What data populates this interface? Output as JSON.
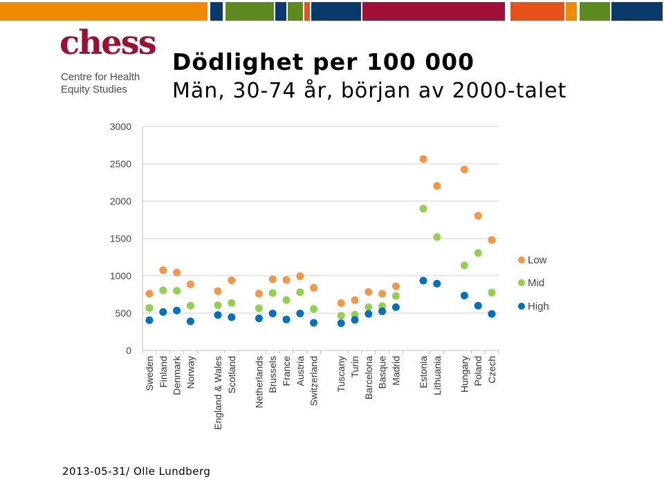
{
  "header": {
    "bar_colors": [
      "#f08a00",
      "#0a3a6b",
      "#5c8a1e",
      "#0a3a6b",
      "#5c8a1e",
      "#e8521a",
      "#0a3a6b",
      "#a0103a",
      "#e8521a",
      "#f08a00",
      "#5c8a1e",
      "#0a3a6b"
    ]
  },
  "logo": {
    "wordmark": "chess",
    "line1": "Centre for Health",
    "line2": "Equity Studies",
    "color": "#9b1033"
  },
  "slide": {
    "title": "Dödlighet per 100 000",
    "subtitle": "Män, 30-74 år, början av 2000-talet"
  },
  "footer": {
    "text": "2013-05-31/ Olle Lundberg"
  },
  "chart_data": {
    "type": "scatter",
    "ylim": [
      0,
      3000
    ],
    "yticks": [
      0,
      500,
      1000,
      1500,
      2000,
      2500,
      3000
    ],
    "grid": true,
    "legend_position": "right",
    "groups": [
      [
        "Sweden",
        "Finland",
        "Denmark",
        "Norway"
      ],
      [
        "England & Wales",
        "Scotland"
      ],
      [
        "Netherlands",
        "Brussels",
        "France",
        "Austria",
        "Switzerland"
      ],
      [
        "Tuscany",
        "Turin",
        "Barcelona",
        "Basque",
        "Madrid"
      ],
      [
        "Estonia",
        "Lithuania"
      ],
      [
        "Hungary",
        "Poland",
        "Czech"
      ]
    ],
    "categories": [
      "Sweden",
      "Finland",
      "Denmark",
      "Norway",
      "England & Wales",
      "Scotland",
      "Netherlands",
      "Brussels",
      "France",
      "Austria",
      "Switzerland",
      "Tuscany",
      "Turin",
      "Barcelona",
      "Basque",
      "Madrid",
      "Estonia",
      "Lithuania",
      "Hungary",
      "Poland",
      "Czech"
    ],
    "series": [
      {
        "name": "Low",
        "color": "#f79646",
        "values": [
          760,
          1075,
          1045,
          885,
          795,
          940,
          760,
          955,
          945,
          995,
          840,
          635,
          675,
          785,
          760,
          860,
          2565,
          2205,
          2425,
          1805,
          1480
        ]
      },
      {
        "name": "Mid",
        "color": "#92d050",
        "values": [
          570,
          805,
          800,
          600,
          605,
          635,
          565,
          770,
          675,
          780,
          555,
          465,
          480,
          580,
          595,
          730,
          1900,
          1520,
          1140,
          1305,
          775
        ]
      },
      {
        "name": "High",
        "color": "#0070c0",
        "values": [
          405,
          515,
          535,
          390,
          475,
          445,
          430,
          495,
          415,
          495,
          370,
          365,
          410,
          490,
          525,
          580,
          935,
          895,
          735,
          600,
          490
        ]
      }
    ]
  }
}
